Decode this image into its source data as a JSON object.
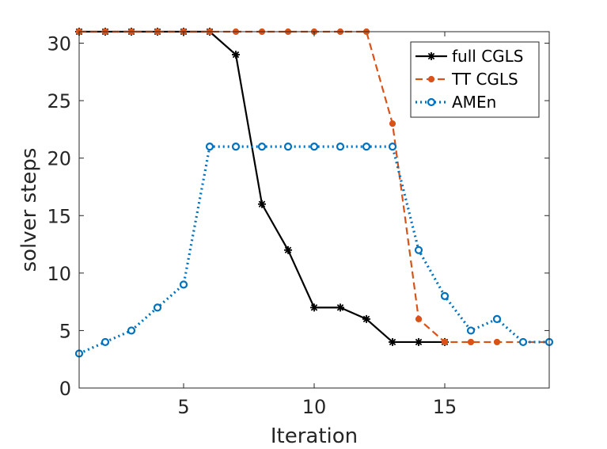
{
  "chart_data": {
    "type": "line",
    "title": "",
    "xlabel": "Iteration",
    "ylabel": "solver steps",
    "xlim": [
      1,
      19
    ],
    "ylim": [
      0,
      31
    ],
    "xticks": [
      5,
      10,
      15
    ],
    "yticks": [
      0,
      5,
      10,
      15,
      20,
      25,
      30
    ],
    "grid": false,
    "legend_position": "top-right",
    "series": [
      {
        "name": "full CGLS",
        "color": "#000000",
        "line_style": "solid",
        "marker": "asterisk",
        "x": [
          1,
          2,
          3,
          4,
          5,
          6,
          7,
          8,
          9,
          10,
          11,
          12,
          13,
          14,
          15
        ],
        "values": [
          31,
          31,
          31,
          31,
          31,
          31,
          29,
          16,
          12,
          7,
          7,
          6,
          4,
          4,
          4
        ]
      },
      {
        "name": "TT CGLS",
        "color": "#D95319",
        "line_style": "dashed",
        "marker": "dot",
        "x": [
          1,
          2,
          3,
          4,
          5,
          6,
          7,
          8,
          9,
          10,
          11,
          12,
          13,
          14,
          15,
          16,
          17,
          18,
          19
        ],
        "values": [
          31,
          31,
          31,
          31,
          31,
          31,
          31,
          31,
          31,
          31,
          31,
          31,
          23,
          6,
          4,
          4,
          4,
          4,
          4
        ]
      },
      {
        "name": "AMEn",
        "color": "#0072BD",
        "line_style": "dotted",
        "marker": "circle",
        "x": [
          1,
          2,
          3,
          4,
          5,
          6,
          7,
          8,
          9,
          10,
          11,
          12,
          13,
          14,
          15,
          16,
          17,
          18,
          19
        ],
        "values": [
          3,
          4,
          5,
          7,
          9,
          21,
          21,
          21,
          21,
          21,
          21,
          21,
          21,
          12,
          8,
          5,
          6,
          4,
          4
        ]
      }
    ]
  }
}
